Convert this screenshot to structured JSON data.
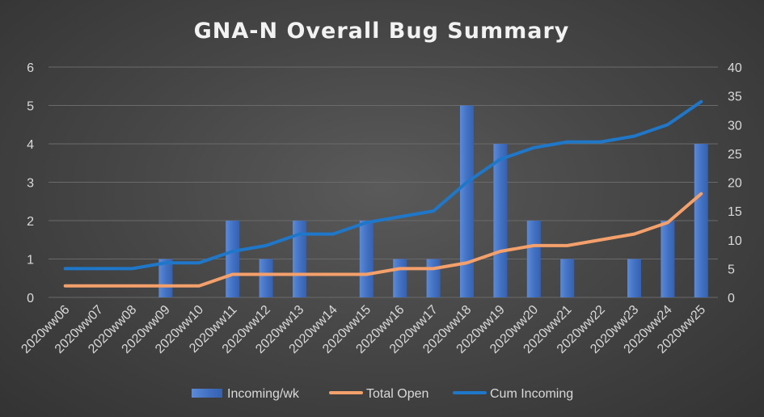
{
  "chart_data": {
    "type": "bar",
    "title": "GNA-N Overall Bug Summary",
    "categories": [
      "2020ww06",
      "2020ww07",
      "2020ww08",
      "2020ww09",
      "2020ww10",
      "2020ww11",
      "2020ww12",
      "2020ww13",
      "2020ww14",
      "2020ww15",
      "2020ww16",
      "2020ww17",
      "2020ww18",
      "2020ww19",
      "2020ww20",
      "2020ww21",
      "2020ww22",
      "2020ww23",
      "2020ww24",
      "2020ww25"
    ],
    "series": [
      {
        "name": "Incoming/wk",
        "type": "bar",
        "axis": "left",
        "color": "#4472c4",
        "values": [
          0,
          0,
          0,
          1,
          0,
          2,
          1,
          2,
          0,
          2,
          1,
          1,
          5,
          4,
          2,
          1,
          0,
          1,
          2,
          4
        ]
      },
      {
        "name": "Total Open",
        "type": "line",
        "axis": "right",
        "color": "#f4a06b",
        "values": [
          2,
          2,
          2,
          2,
          2,
          4,
          4,
          4,
          4,
          4,
          5,
          5,
          6,
          8,
          9,
          9,
          10,
          11,
          13,
          18
        ]
      },
      {
        "name": "Cum Incoming",
        "type": "line",
        "axis": "right",
        "color": "#1f77c9",
        "values": [
          5,
          5,
          5,
          6,
          6,
          8,
          9,
          11,
          11,
          13,
          14,
          15,
          20,
          24,
          26,
          27,
          27,
          28,
          30,
          34
        ]
      }
    ],
    "ylim_left": [
      0,
      6
    ],
    "yticks_left": [
      "0",
      "1",
      "2",
      "3",
      "4",
      "5",
      "6"
    ],
    "ylim_right": [
      0,
      40
    ],
    "yticks_right": [
      "0",
      "5",
      "10",
      "15",
      "20",
      "25",
      "30",
      "35",
      "40"
    ],
    "grid": true,
    "legend_position": "bottom"
  }
}
